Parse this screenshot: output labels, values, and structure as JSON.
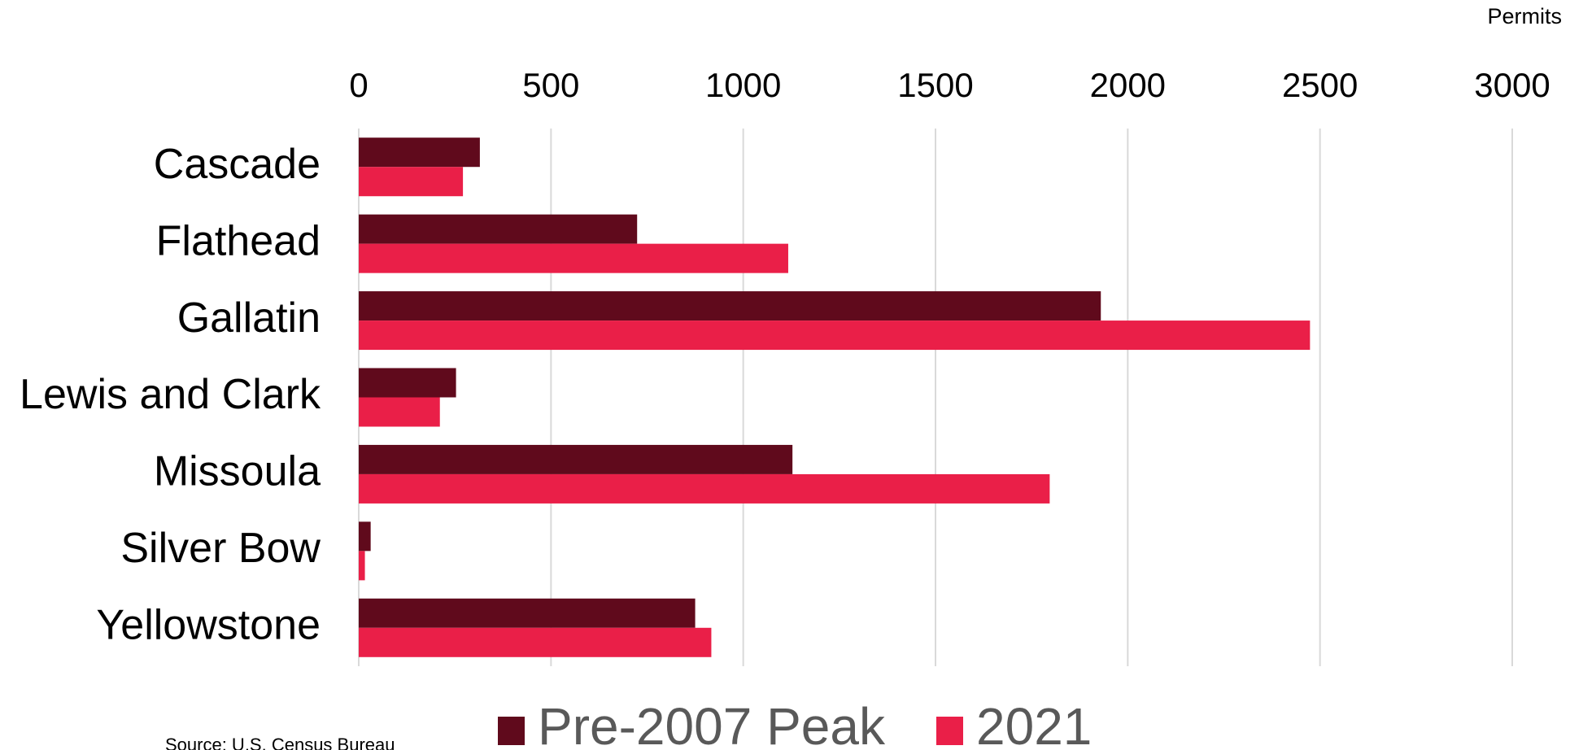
{
  "chart_data": {
    "type": "barh",
    "x_label": "Permits",
    "source": "Source:  U.S. Census Bureau",
    "categories": [
      "Cascade",
      "Flathead",
      "Gallatin",
      "Lewis and Clark",
      "Missoula",
      "Silver Bow",
      "Yellowstone"
    ],
    "series": [
      {
        "name": "Pre-2007 Peak",
        "color": "#600a1c",
        "values": [
          315,
          724,
          1930,
          253,
          1128,
          31,
          875
        ]
      },
      {
        "name": "2021",
        "color": "#ea1f48",
        "values": [
          271,
          1117,
          2474,
          211,
          1797,
          16,
          917
        ]
      }
    ],
    "xlim": [
      0,
      3000
    ],
    "xticks": [
      0,
      500,
      1000,
      1500,
      2000,
      2500,
      3000
    ],
    "grid": true,
    "legend": "bottom"
  }
}
